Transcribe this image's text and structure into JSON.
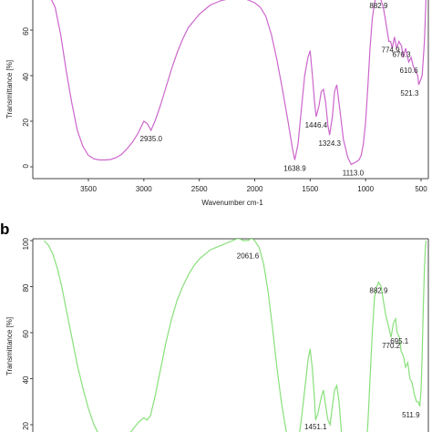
{
  "chart_data": [
    {
      "type": "line",
      "panel_label": "",
      "xlabel": "Wavenumber cm-1",
      "ylabel": "Transmittance [%]",
      "xlim": [
        3900,
        450
      ],
      "ylim": [
        -3,
        75
      ],
      "x_reversed": true,
      "grid": false,
      "color": "#cc66cc",
      "x_ticks": [
        3500,
        3000,
        2500,
        2000,
        1500,
        1000,
        500
      ],
      "y_ticks": [
        0,
        20,
        40,
        60
      ],
      "series": [
        {
          "x": [
            3900,
            3850,
            3800,
            3750,
            3700,
            3650,
            3600,
            3550,
            3500,
            3450,
            3400,
            3350,
            3300,
            3250,
            3200,
            3150,
            3100,
            3050,
            3000,
            2970,
            2935,
            2900,
            2850,
            2800,
            2750,
            2700,
            2650,
            2600,
            2550,
            2500,
            2450,
            2400,
            2350,
            2300,
            2250,
            2200,
            2150,
            2100,
            2050,
            2000,
            1950,
            1900,
            1850,
            1800,
            1750,
            1700,
            1660,
            1638.9,
            1610,
            1580,
            1550,
            1520,
            1500,
            1480,
            1460,
            1446.4,
            1420,
            1400,
            1380,
            1360,
            1340,
            1324.3,
            1300,
            1280,
            1260,
            1240,
            1200,
            1160,
            1130,
            1113,
            1090,
            1060,
            1040,
            1020,
            1000,
            980,
            960,
            940,
            920,
            900,
            882.9,
            860,
            840,
            820,
            800,
            790,
            774.9,
            760,
            740,
            720,
            700,
            676.3,
            660,
            640,
            610.6,
            590,
            570,
            550,
            530,
            521.3,
            505,
            490,
            470,
            455
          ],
          "y": [
            75,
            75,
            70,
            58,
            42,
            28,
            16,
            9,
            5,
            3.5,
            3,
            3,
            3.2,
            4,
            5.5,
            8,
            11,
            15,
            20,
            19,
            16,
            20,
            27,
            35,
            43,
            50,
            56,
            61,
            64,
            67,
            69,
            71,
            72,
            73,
            73.5,
            74,
            74,
            74,
            73,
            72,
            70,
            66,
            58,
            47,
            34,
            20,
            8,
            3,
            10,
            25,
            40,
            48,
            51,
            40,
            28,
            22,
            27,
            33,
            34,
            28,
            18,
            14,
            22,
            33,
            36,
            28,
            12,
            4,
            1,
            1.5,
            2,
            3,
            5,
            10,
            20,
            35,
            52,
            65,
            72,
            75,
            75,
            73,
            70,
            64,
            58,
            55,
            55,
            52,
            57,
            52,
            55,
            53,
            48,
            52,
            46,
            48,
            44,
            42,
            40,
            36,
            38,
            40,
            55,
            75
          ]
        }
      ],
      "annotations": [
        {
          "text": "2935.0",
          "x": 2935,
          "y": 16
        },
        {
          "text": "1638.9",
          "x": 1638.9,
          "y": 3
        },
        {
          "text": "1446.4",
          "x": 1446.4,
          "y": 22
        },
        {
          "text": "1324.3",
          "x": 1324.3,
          "y": 14
        },
        {
          "text": "1113.0",
          "x": 1113,
          "y": 1
        },
        {
          "text": "882.9",
          "x": 882.9,
          "y": 75
        },
        {
          "text": "676.3",
          "x": 676.3,
          "y": 53
        },
        {
          "text": "774.9",
          "x": 774.9,
          "y": 55
        },
        {
          "text": "610.6",
          "x": 610.6,
          "y": 46
        },
        {
          "text": "521.3",
          "x": 521.3,
          "y": 36
        }
      ]
    },
    {
      "type": "line",
      "panel_label": "b",
      "xlabel": "",
      "ylabel": "Transmittance [%]",
      "xlim": [
        3900,
        450
      ],
      "ylim": [
        0,
        100
      ],
      "x_reversed": true,
      "grid": false,
      "color": "#88e07a",
      "x_ticks": [],
      "y_ticks": [
        20,
        40,
        60,
        80,
        100
      ],
      "series": [
        {
          "x": [
            3900,
            3860,
            3820,
            3780,
            3740,
            3700,
            3650,
            3600,
            3550,
            3500,
            3450,
            3400,
            3350,
            3300,
            3250,
            3200,
            3150,
            3100,
            3050,
            3000,
            2970,
            2940,
            2900,
            2850,
            2800,
            2750,
            2700,
            2650,
            2600,
            2550,
            2500,
            2450,
            2400,
            2350,
            2300,
            2250,
            2200,
            2150,
            2100,
            2061.6,
            2030,
            2000,
            1960,
            1920,
            1880,
            1840,
            1800,
            1760,
            1720,
            1680,
            1640,
            1610,
            1580,
            1550,
            1520,
            1500,
            1480,
            1460,
            1451.1,
            1430,
            1400,
            1380,
            1360,
            1340,
            1320,
            1300,
            1280,
            1260,
            1240,
            1220,
            1200,
            1000,
            980,
            960,
            940,
            920,
            900,
            882.9,
            860,
            840,
            820,
            800,
            790,
            770.2,
            750,
            730,
            715,
            695.1,
            680,
            660,
            640,
            620,
            600,
            580,
            560,
            540,
            525,
            511.9,
            500,
            490,
            480,
            470,
            460,
            455
          ],
          "y": [
            100,
            98,
            94,
            88,
            80,
            70,
            58,
            46,
            36,
            27,
            20,
            15,
            13,
            12,
            12,
            13,
            15,
            18,
            21,
            23,
            22,
            24,
            32,
            44,
            56,
            66,
            74,
            80,
            85,
            89,
            92,
            94,
            96,
            97,
            98,
            99,
            100,
            101,
            100,
            100,
            101,
            100,
            97,
            90,
            78,
            62,
            45,
            30,
            18,
            10,
            8,
            12,
            22,
            35,
            48,
            53,
            44,
            30,
            22,
            25,
            32,
            35,
            28,
            22,
            20,
            28,
            35,
            37,
            30,
            18,
            8,
            8,
            20,
            40,
            60,
            75,
            80,
            82,
            80,
            74,
            68,
            64,
            62,
            58,
            64,
            66,
            60,
            58,
            52,
            50,
            45,
            47,
            40,
            38,
            33,
            30,
            30,
            28,
            35,
            50,
            70,
            88,
            98,
            100
          ]
        }
      ],
      "annotations": [
        {
          "text": "2061.6",
          "x": 2061.6,
          "y": 97
        },
        {
          "text": "882.9",
          "x": 882.9,
          "y": 82
        },
        {
          "text": "695.1",
          "x": 695.1,
          "y": 60
        },
        {
          "text": "770.2",
          "x": 770.2,
          "y": 58
        },
        {
          "text": "511.9",
          "x": 511.9,
          "y": 28
        },
        {
          "text": "1451.1",
          "x": 1451.1,
          "y": 22
        }
      ]
    }
  ]
}
